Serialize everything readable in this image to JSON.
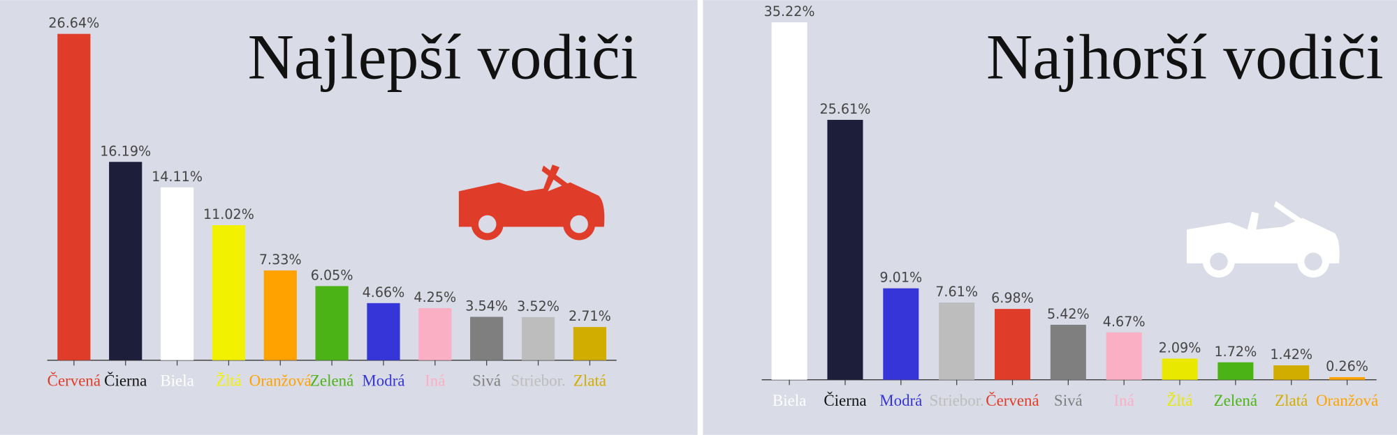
{
  "chart_data": [
    {
      "type": "bar",
      "title": "Najlepší vodiči",
      "categories": [
        "Červená",
        "Čierna",
        "Biela",
        "Žltá",
        "Oranžová",
        "Zelená",
        "Modrá",
        "Iná",
        "Sivá",
        "Striebor.",
        "Zlatá"
      ],
      "values": [
        26.64,
        16.19,
        14.11,
        11.02,
        7.33,
        6.05,
        4.66,
        4.25,
        3.54,
        3.52,
        2.71
      ],
      "value_labels": [
        "26.64%",
        "16.19%",
        "14.11%",
        "11.02%",
        "7.33%",
        "6.05%",
        "4.66%",
        "4.25%",
        "3.54%",
        "3.52%",
        "2.71%"
      ],
      "colors": [
        "#e03c2a",
        "#1c1e3a",
        "#ffffff",
        "#f2f200",
        "#ffa200",
        "#4cb317",
        "#3535d8",
        "#fbafc4",
        "#7f7f7f",
        "#bdbdbd",
        "#d1ad00"
      ]
    },
    {
      "type": "bar",
      "title": "Najhorší vodiči",
      "categories": [
        "Biela",
        "Čierna",
        "Modrá",
        "Striebor.",
        "Červená",
        "Sivá",
        "Iná",
        "Žltá",
        "Zelená",
        "Zlatá",
        "Oranžová"
      ],
      "values": [
        35.22,
        25.61,
        9.01,
        7.61,
        6.98,
        5.42,
        4.67,
        2.09,
        1.72,
        1.42,
        0.26
      ],
      "value_labels": [
        "35.22%",
        "25.61%",
        "9.01%",
        "7.61%",
        "6.98%",
        "5.42%",
        "4.67%",
        "2.09%",
        "1.72%",
        "1.42%",
        "0.26%"
      ],
      "colors": [
        "#ffffff",
        "#1c1e3a",
        "#3535d8",
        "#bdbdbd",
        "#e03c2a",
        "#7f7f7f",
        "#fbafc4",
        "#e8e800",
        "#4cb317",
        "#d1ad00",
        "#ffa200"
      ]
    }
  ]
}
